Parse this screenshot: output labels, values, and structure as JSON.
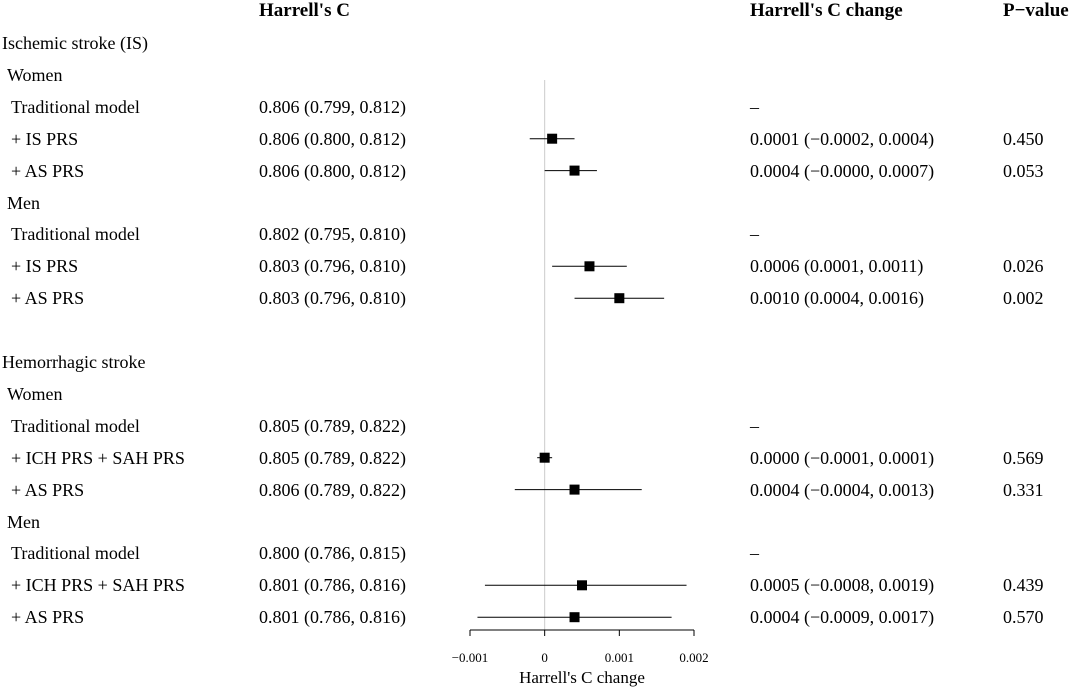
{
  "headers": {
    "harrells_c": "Harrell's C",
    "harrells_c_change": "Harrell's C change",
    "p_value": "P−value"
  },
  "rows": [
    {
      "label": "Ischemic stroke (IS)",
      "level": 0,
      "c": "",
      "change": "",
      "p": "",
      "est": null,
      "lo": null,
      "hi": null
    },
    {
      "label": "Women",
      "level": 1,
      "c": "",
      "change": "",
      "p": "",
      "est": null,
      "lo": null,
      "hi": null
    },
    {
      "label": "Traditional model",
      "level": 2,
      "c": "0.806 (0.799, 0.812)",
      "change": "–",
      "p": "",
      "est": null,
      "lo": null,
      "hi": null
    },
    {
      "label": "+ IS PRS",
      "level": 2,
      "c": "0.806 (0.800, 0.812)",
      "change": "0.0001 (−0.0002, 0.0004)",
      "p": "0.450",
      "est": 0.0001,
      "lo": -0.0002,
      "hi": 0.0004
    },
    {
      "label": "+ AS PRS",
      "level": 2,
      "c": "0.806 (0.800, 0.812)",
      "change": "0.0004 (−0.0000, 0.0007)",
      "p": "0.053",
      "est": 0.0004,
      "lo": 0.0,
      "hi": 0.0007
    },
    {
      "label": "Men",
      "level": 1,
      "c": "",
      "change": "",
      "p": "",
      "est": null,
      "lo": null,
      "hi": null
    },
    {
      "label": "Traditional model",
      "level": 2,
      "c": "0.802 (0.795, 0.810)",
      "change": "–",
      "p": "",
      "est": null,
      "lo": null,
      "hi": null
    },
    {
      "label": "+ IS PRS",
      "level": 2,
      "c": "0.803 (0.796, 0.810)",
      "change": "0.0006 (0.0001, 0.0011)",
      "p": "0.026",
      "est": 0.0006,
      "lo": 0.0001,
      "hi": 0.0011
    },
    {
      "label": "+ AS PRS",
      "level": 2,
      "c": "0.803 (0.796, 0.810)",
      "change": "0.0010 (0.0004, 0.0016)",
      "p": "0.002",
      "est": 0.001,
      "lo": 0.0004,
      "hi": 0.0016
    },
    {
      "label": "",
      "level": 0,
      "c": "",
      "change": "",
      "p": "",
      "est": null,
      "lo": null,
      "hi": null
    },
    {
      "label": "Hemorrhagic stroke",
      "level": 0,
      "c": "",
      "change": "",
      "p": "",
      "est": null,
      "lo": null,
      "hi": null
    },
    {
      "label": "Women",
      "level": 1,
      "c": "",
      "change": "",
      "p": "",
      "est": null,
      "lo": null,
      "hi": null
    },
    {
      "label": "Traditional model",
      "level": 2,
      "c": "0.805 (0.789, 0.822)",
      "change": "–",
      "p": "",
      "est": null,
      "lo": null,
      "hi": null
    },
    {
      "label": "+ ICH PRS + SAH PRS",
      "level": 2,
      "c": "0.805 (0.789, 0.822)",
      "change": "0.0000 (−0.0001, 0.0001)",
      "p": "0.569",
      "est": 0.0,
      "lo": -0.0001,
      "hi": 0.0001
    },
    {
      "label": "+ AS PRS",
      "level": 2,
      "c": "0.806 (0.789, 0.822)",
      "change": "0.0004 (−0.0004, 0.0013)",
      "p": "0.331",
      "est": 0.0004,
      "lo": -0.0004,
      "hi": 0.0013
    },
    {
      "label": "Men",
      "level": 1,
      "c": "",
      "change": "",
      "p": "",
      "est": null,
      "lo": null,
      "hi": null
    },
    {
      "label": "Traditional model",
      "level": 2,
      "c": "0.800 (0.786, 0.815)",
      "change": "–",
      "p": "",
      "est": null,
      "lo": null,
      "hi": null
    },
    {
      "label": "+ ICH PRS + SAH PRS",
      "level": 2,
      "c": "0.801 (0.786, 0.816)",
      "change": "0.0005 (−0.0008, 0.0019)",
      "p": "0.439",
      "est": 0.0005,
      "lo": -0.0008,
      "hi": 0.0019
    },
    {
      "label": "+ AS PRS",
      "level": 2,
      "c": "0.801 (0.786, 0.816)",
      "change": "0.0004 (−0.0009, 0.0017)",
      "p": "0.570",
      "est": 0.0004,
      "lo": -0.0009,
      "hi": 0.0017
    }
  ],
  "chart_data": {
    "type": "forest",
    "xlabel": "Harrell's C change",
    "xlim": [
      -0.001,
      0.002
    ],
    "xticks": [
      -0.001,
      0,
      0.001,
      0.002
    ],
    "xtick_labels": [
      "−0.001",
      "0",
      "0.001",
      "0.002"
    ],
    "reference_line": 0,
    "reference_color": "#cccccc",
    "marker_color": "#000000"
  }
}
